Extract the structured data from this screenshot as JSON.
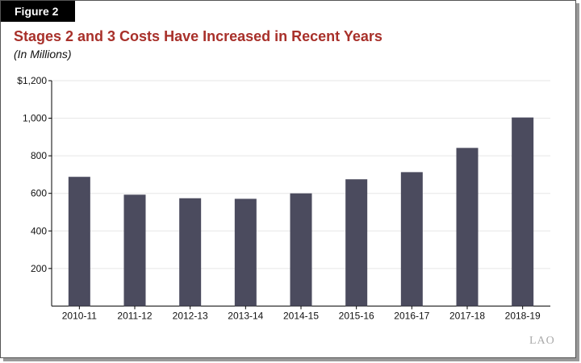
{
  "figure_label": "Figure 2",
  "logo": "LAO",
  "chart_data": {
    "type": "bar",
    "title": "Stages 2 and 3 Costs Have Increased in Recent Years",
    "subtitle": "(In Millions)",
    "categories": [
      "2010-11",
      "2011-12",
      "2012-13",
      "2013-14",
      "2014-15",
      "2015-16",
      "2016-17",
      "2017-18",
      "2018-19"
    ],
    "values": [
      688,
      593,
      574,
      571,
      600,
      675,
      713,
      842,
      1004
    ],
    "ylim": [
      0,
      1200
    ],
    "yticks": [
      200,
      400,
      600,
      800,
      1000,
      1200
    ],
    "ytick_labels": [
      "200",
      "400",
      "600",
      "800",
      "1,000",
      "$1,200"
    ],
    "xlabel": "",
    "ylabel": "",
    "grid": true,
    "bar_color": "#4b4b5e",
    "title_color": "#a8302a"
  }
}
